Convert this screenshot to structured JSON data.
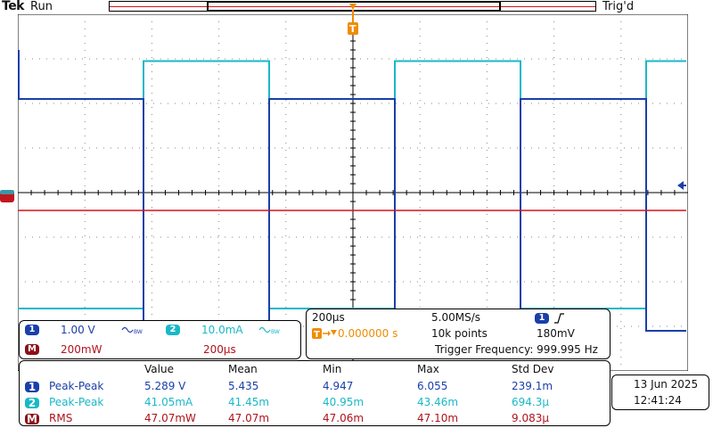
{
  "header": {
    "brand": "Tek",
    "run_state": "Run",
    "trigger_state": "Trig'd",
    "trigger_marker": "T"
  },
  "channels": {
    "ch1": {
      "number": "1",
      "scale": "1.00 V",
      "bw_icon": "bandwidth-limit-icon",
      "color": "#1a3fa8"
    },
    "ch2": {
      "number": "2",
      "scale": "10.0mA",
      "bw_icon": "bandwidth-limit-icon",
      "color": "#19b8c8"
    },
    "math": {
      "label": "M",
      "scale": "200mW",
      "timebase": "200µs",
      "color": "#d4141c"
    }
  },
  "acquisition": {
    "horizontal_scale": "200µs",
    "sample_rate": "5.00MS/s",
    "trigger_delay": "0.000000 s",
    "record_length": "10k points",
    "trigger_channel": "1",
    "trigger_slope_icon": "rising-edge-icon",
    "trigger_level": "180mV",
    "trigger_frequency": "Trigger Frequency: 999.995 Hz"
  },
  "measurements": {
    "headers": [
      "Value",
      "Mean",
      "Min",
      "Max",
      "Std Dev"
    ],
    "rows": [
      {
        "badge": "1",
        "name": "Peak-Peak",
        "value": "5.289 V",
        "mean": "5.435",
        "min": "4.947",
        "max": "6.055",
        "std": "239.1m"
      },
      {
        "badge": "2",
        "name": "Peak-Peak",
        "value": "41.05mA",
        "mean": "41.45m",
        "min": "40.95m",
        "max": "43.46m",
        "std": "694.3µ"
      },
      {
        "badge": "M",
        "name": "RMS",
        "value": "47.07mW",
        "mean": "47.07m",
        "min": "47.06m",
        "max": "47.10m",
        "std": "9.083µ"
      }
    ]
  },
  "datetime": {
    "date": "13 Jun  2025",
    "time": "12:41:24"
  },
  "waveforms": {
    "ch1": {
      "high_div": 2.1,
      "low_div": -3.1,
      "period_div": 3.75,
      "start_high": true
    },
    "ch2": {
      "high_div": 2.95,
      "low_div": -2.6,
      "period_div": 3.75,
      "start_high": false
    },
    "math": {
      "level_div": -0.4
    }
  }
}
